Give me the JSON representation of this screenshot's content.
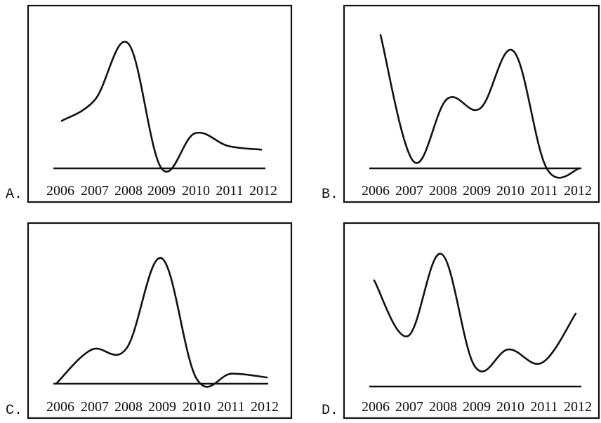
{
  "chart_data": [
    {
      "panel": "A.",
      "type": "line",
      "categories": [
        "2006",
        "2007",
        "2008",
        "2009",
        "2010",
        "2011",
        "2012"
      ],
      "values": [
        0.38,
        0.55,
        1.0,
        0.0,
        0.28,
        0.18,
        0.15
      ],
      "ylim": [
        0,
        1
      ],
      "grid": false,
      "y_axis_labels": false
    },
    {
      "panel": "B.",
      "type": "line",
      "categories": [
        "2006",
        "2007",
        "2008",
        "2009",
        "2010",
        "2011",
        "2012"
      ],
      "values": [
        1.0,
        0.05,
        0.52,
        0.45,
        0.88,
        0.0,
        0.0
      ],
      "ylim": [
        0,
        1
      ],
      "grid": false,
      "y_axis_labels": false
    },
    {
      "panel": "C.",
      "type": "line",
      "categories": [
        "2006",
        "2007",
        "2008",
        "2009",
        "2010",
        "2011",
        "2012"
      ],
      "values": [
        0.0,
        0.27,
        0.28,
        1.0,
        0.04,
        0.08,
        0.05
      ],
      "ylim": [
        0,
        1
      ],
      "grid": false,
      "y_axis_labels": false
    },
    {
      "panel": "D.",
      "type": "line",
      "categories": [
        "2006",
        "2007",
        "2008",
        "2009",
        "2010",
        "2011",
        "2012"
      ],
      "values": [
        0.8,
        0.38,
        1.0,
        0.15,
        0.28,
        0.18,
        0.55
      ],
      "ylim": [
        0,
        1
      ],
      "grid": false,
      "y_axis_labels": false
    }
  ]
}
